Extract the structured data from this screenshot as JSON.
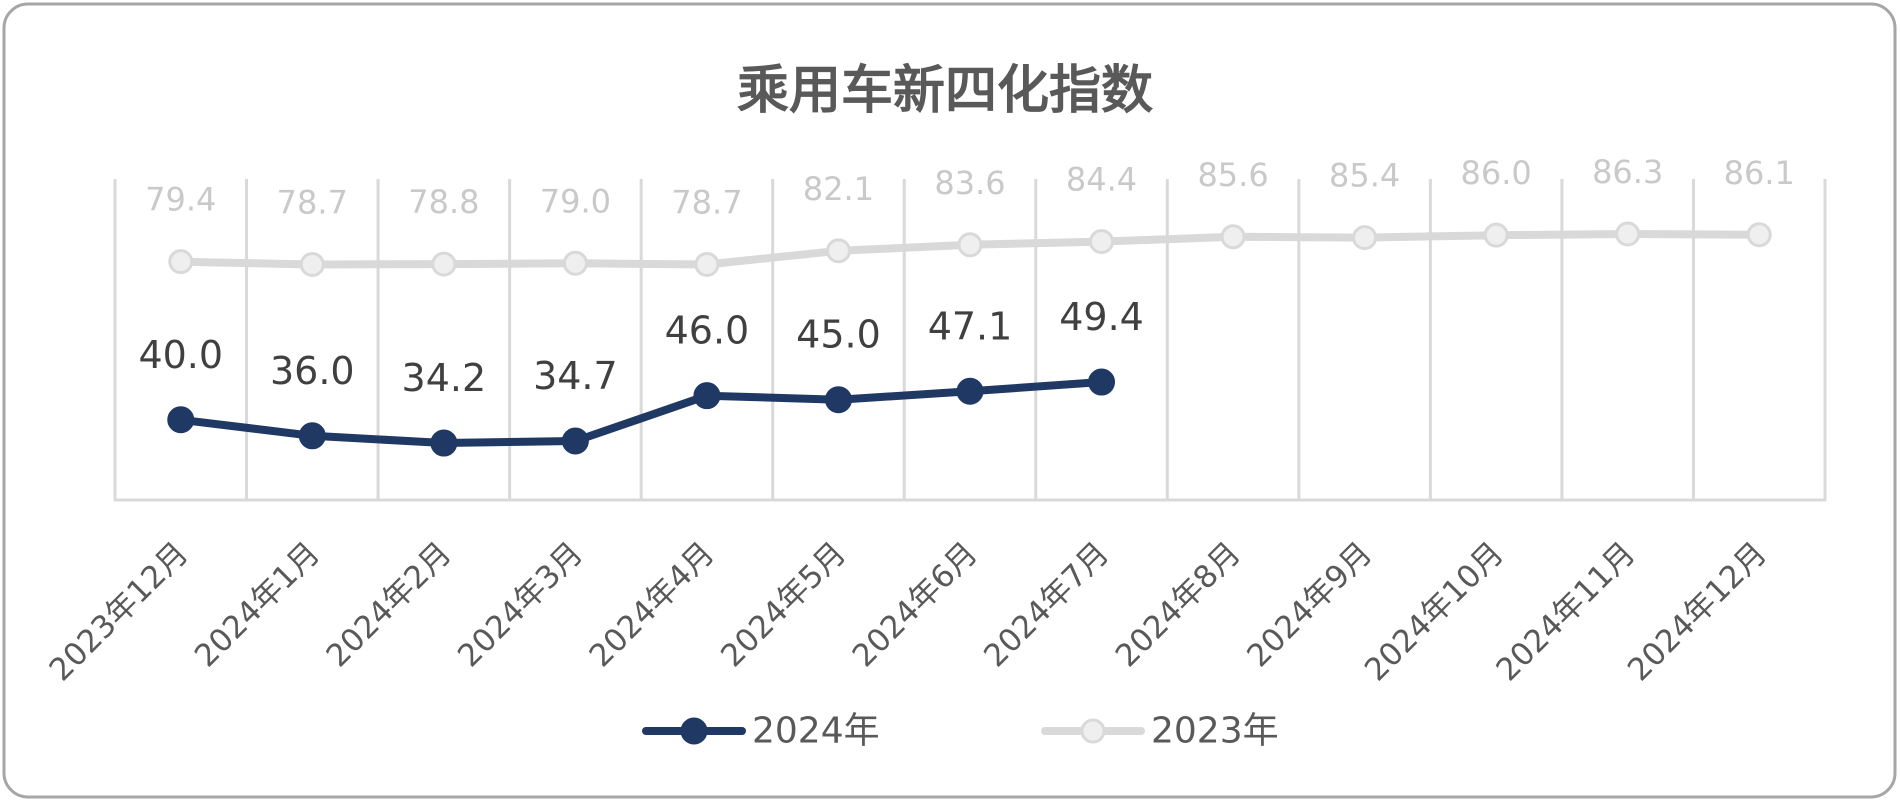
{
  "chart_data": {
    "type": "line",
    "title": "乘用车新四化指数",
    "categories": [
      "2023年12月",
      "2024年1月",
      "2024年2月",
      "2024年3月",
      "2024年4月",
      "2024年5月",
      "2024年6月",
      "2024年7月",
      "2024年8月",
      "2024年9月",
      "2024年10月",
      "2024年11月",
      "2024年12月"
    ],
    "series": [
      {
        "name": "2024年",
        "color": "#203864",
        "values": [
          40.0,
          36.0,
          34.2,
          34.7,
          46.0,
          45.0,
          47.1,
          49.4,
          null,
          null,
          null,
          null,
          null
        ]
      },
      {
        "name": "2023年",
        "color": "#D9D9D9",
        "values": [
          79.4,
          78.7,
          78.8,
          79.0,
          78.7,
          82.1,
          83.6,
          84.4,
          85.6,
          85.4,
          86.0,
          86.3,
          86.1
        ]
      }
    ],
    "ylim": [
      20,
      100
    ],
    "grid": "vertical category lines",
    "data_labels": true,
    "legend": "bottom-center"
  }
}
